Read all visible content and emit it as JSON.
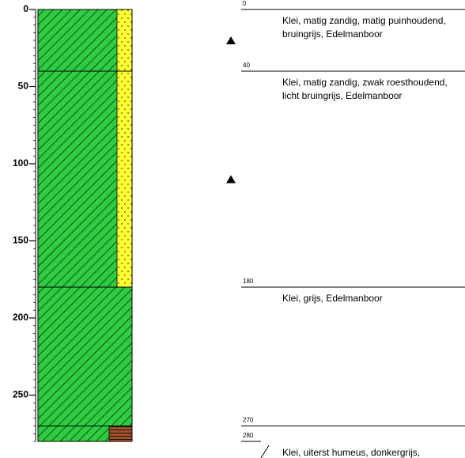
{
  "depth_axis": {
    "ylim": [
      0,
      280
    ],
    "ticks": [
      0,
      50,
      100,
      150,
      200,
      250
    ],
    "minor_tick_interval": 5
  },
  "layers": [
    {
      "top": 0,
      "text": "Klei, matig zandig, matig puinhoudend, bruingrijs, Edelmanboor",
      "strip": "sand"
    },
    {
      "top": 40,
      "text": "Klei, matig zandig, zwak roesthoudend, licht bruingrijs, Edelmanboor",
      "strip": "sand"
    },
    {
      "top": 180,
      "text": "Klei, grijs, Edelmanboor",
      "strip": null
    },
    {
      "top": 270,
      "text": "Klei, uiterst humeus, donkergrijs, Edelmanboor, slootbodem",
      "strip": "peat"
    }
  ],
  "end_depth": 280,
  "water_levels": [
    20,
    110
  ]
}
